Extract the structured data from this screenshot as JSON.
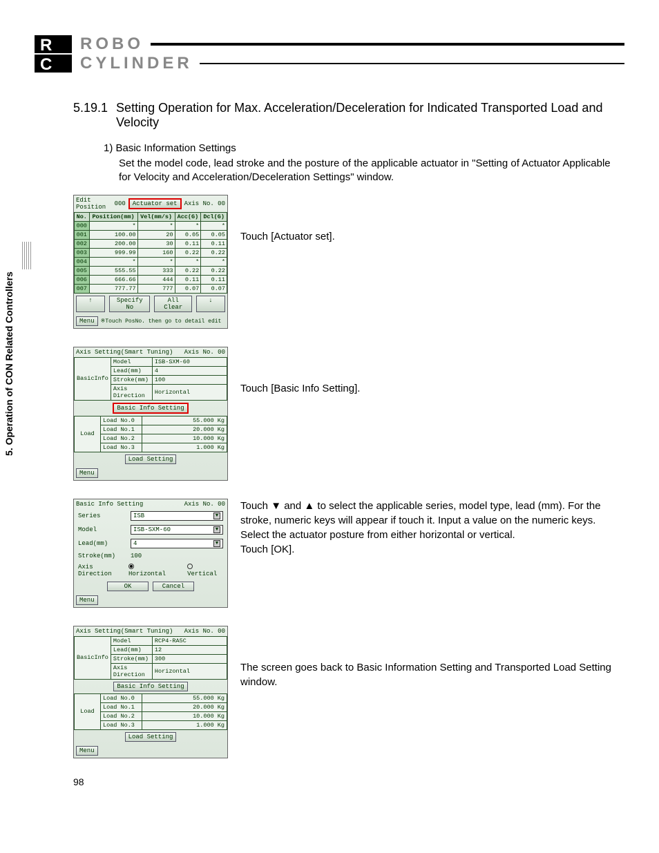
{
  "sideTab": "5. Operation of CON Related Controllers",
  "brand": {
    "line1": "ROBO",
    "line2": "CYLINDER"
  },
  "heading": {
    "num": "5.19.1",
    "text": "Setting Operation for Max. Acceleration/Deceleration for Indicated Transported Load and Velocity"
  },
  "step": {
    "head": "1)  Basic Information Settings",
    "body": "Set the model code, lead stroke and the posture of the applicable actuator in \"Setting of Actuator Applicable for Velocity and Acceleration/Deceleration Settings\" window."
  },
  "panel1": {
    "title": "Edit Position",
    "mode": "000",
    "actuatorSet": "Actuator set",
    "axis": "Axis No. 00",
    "cols": [
      "No.",
      "Position(mm)",
      "Vel(mm/s)",
      "Acc(G)",
      "Dcl(G)"
    ],
    "rows": [
      [
        "000",
        "*",
        "*",
        "*",
        "*"
      ],
      [
        "001",
        "100.00",
        "20",
        "0.05",
        "0.05"
      ],
      [
        "002",
        "200.00",
        "30",
        "0.11",
        "0.11"
      ],
      [
        "003",
        "999.99",
        "160",
        "0.22",
        "0.22"
      ],
      [
        "004",
        "*",
        "*",
        "*",
        "*"
      ],
      [
        "005",
        "555.55",
        "333",
        "0.22",
        "0.22"
      ],
      [
        "006",
        "666.66",
        "444",
        "0.11",
        "0.11"
      ],
      [
        "007",
        "777.77",
        "777",
        "0.07",
        "0.07"
      ]
    ],
    "btnUp": "↑",
    "specify": "Specify No",
    "allClear": "All Clear",
    "btnDown": "↓",
    "menu": "Menu",
    "hint": "※Touch PosNo. then go to detail edit"
  },
  "caption1": "Touch [Actuator set].",
  "panel2": {
    "title": "Axis Setting(Smart Tuning)",
    "axis": "Axis No. 00",
    "basicLabel": "BasicInfo",
    "kv": [
      [
        "Model",
        "ISB-SXM-60"
      ],
      [
        "Lead(mm)",
        "4"
      ],
      [
        "Stroke(mm)",
        "100"
      ],
      [
        "Axis Direction",
        "Horizontal"
      ]
    ],
    "basicBtn": "Basic Info Setting",
    "loadLabel": "Load",
    "loads": [
      [
        "Load No.0",
        "55.000 Kg"
      ],
      [
        "Load No.1",
        "20.000 Kg"
      ],
      [
        "Load No.2",
        "10.000 Kg"
      ],
      [
        "Load No.3",
        "1.000 Kg"
      ]
    ],
    "loadBtn": "Load Setting",
    "menu": "Menu"
  },
  "caption2": "Touch [Basic Info Setting].",
  "panel3": {
    "title": "Basic Info Setting",
    "axis": "Axis No. 00",
    "seriesLab": "Series",
    "seriesVal": "ISB",
    "modelLab": "Model",
    "modelVal": "ISB-SXM-60",
    "leadLab": "Lead(mm)",
    "leadVal": "4",
    "strokeLab": "Stroke(mm)",
    "strokeVal": "100",
    "axisDirLab": "Axis Direction",
    "horiz": "Horizontal",
    "vert": "Vertical",
    "ok": "OK",
    "cancel": "Cancel",
    "menu": "Menu"
  },
  "caption3": "Touch ▼ and ▲ to select the applicable series, model type, lead (mm). For the stroke, numeric keys will appear if touch it. Input a value on the numeric keys.\nSelect the actuator posture from either horizontal or vertical.\nTouch [OK].",
  "panel4": {
    "title": "Axis Setting(Smart Tuning)",
    "axis": "Axis No. 00",
    "basicLabel": "BasicInfo",
    "kv": [
      [
        "Model",
        "RCP4-RA5C"
      ],
      [
        "Lead(mm)",
        "12"
      ],
      [
        "Stroke(mm)",
        "300"
      ],
      [
        "Axis Direction",
        "Horizontal"
      ]
    ],
    "basicBtn": "Basic Info Setting",
    "loadLabel": "Load",
    "loads": [
      [
        "Load No.0",
        "55.000 Kg"
      ],
      [
        "Load No.1",
        "20.000 Kg"
      ],
      [
        "Load No.2",
        "10.000 Kg"
      ],
      [
        "Load No.3",
        "1.000 Kg"
      ]
    ],
    "loadBtn": "Load Setting",
    "menu": "Menu"
  },
  "caption4": "The screen goes back to Basic Information Setting and Transported Load Setting window.",
  "pageNum": "98"
}
